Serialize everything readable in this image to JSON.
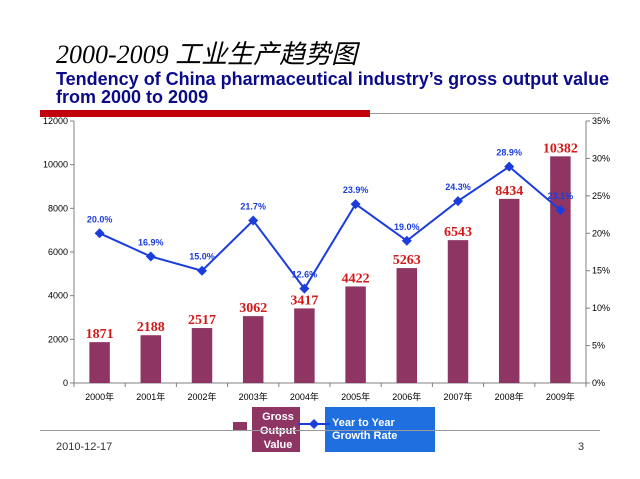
{
  "slide": {
    "title_cn": "2000-2009 工业生产趋势图",
    "title_en": "Tendency of China pharmaceutical industry’s gross output value from 2000 to 2009",
    "footer_date": "2010-12-17",
    "page_number": "3"
  },
  "legend": {
    "gross_label": "Gross Output Value",
    "growth_label": "Year to Year Growth Rate"
  },
  "colors": {
    "bar": "#8e3564",
    "line": "#1a3ddc",
    "value_label": "#d21a1a",
    "growth_label": "#1a3ddc"
  },
  "chart_data": {
    "type": "bar",
    "categories": [
      "2000年",
      "2001年",
      "2002年",
      "2003年",
      "2004年",
      "2005年",
      "2006年",
      "2007年",
      "2008年",
      "2009年"
    ],
    "series": [
      {
        "name": "Gross Output Value",
        "type": "bar",
        "axis": "left",
        "values": [
          1871,
          2188,
          2517,
          3062,
          3417,
          4422,
          5263,
          6543,
          8434,
          10382
        ],
        "labels": [
          "1871",
          "2188",
          "2517",
          "3062",
          "3417",
          "4422",
          "5263",
          "6543",
          "8434",
          "10382"
        ]
      },
      {
        "name": "Year to Year Growth Rate",
        "type": "line",
        "axis": "right",
        "values": [
          20.0,
          16.9,
          15.0,
          21.7,
          12.6,
          23.9,
          19.0,
          24.3,
          28.9,
          23.1
        ],
        "labels": [
          "20.0%",
          "16.9%",
          "15.0%",
          "21.7%",
          "12.6%",
          "23.9%",
          "19.0%",
          "24.3%",
          "28.9%",
          "23.1%"
        ]
      }
    ],
    "ylim": [
      0,
      12000
    ],
    "yticks": [
      "0",
      "2000",
      "4000",
      "6000",
      "8000",
      "10000",
      "12000"
    ],
    "y2lim": [
      0,
      35
    ],
    "y2ticks": [
      "0%",
      "5%",
      "10%",
      "15%",
      "20%",
      "25%",
      "30%",
      "35%"
    ],
    "grid": false,
    "legend_position": "bottom"
  }
}
